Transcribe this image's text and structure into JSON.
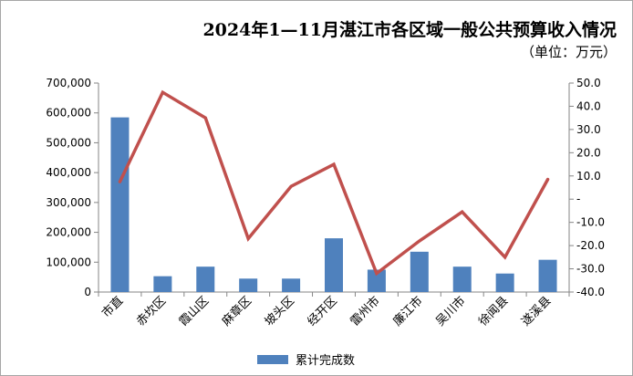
{
  "chart_data": {
    "type": "bar",
    "title": "2024年1—11月湛江市各区域一般公共预算收入情况",
    "subtitle": "（单位：万元）",
    "categories": [
      "市直",
      "赤坎区",
      "霞山区",
      "麻章区",
      "坡头区",
      "经开区",
      "雷州市",
      "廉江市",
      "吴川市",
      "徐闻县",
      "遂溪县"
    ],
    "series": [
      {
        "name": "累计完成数",
        "type": "bar",
        "axis": "left",
        "color": "#4f81bd",
        "values": [
          585000,
          53000,
          85000,
          45000,
          45000,
          180000,
          75000,
          135000,
          85000,
          62000,
          108000
        ]
      },
      {
        "type": "line",
        "axis": "right",
        "color": "#c0504d",
        "values": [
          7.5,
          46,
          35,
          -17,
          5.5,
          15,
          -32,
          -18,
          -5.5,
          -25,
          8.5
        ]
      }
    ],
    "yLeft": {
      "min": 0,
      "max": 700000,
      "ticks": [
        "0",
        "100,000",
        "200,000",
        "300,000",
        "400,000",
        "500,000",
        "600,000",
        "700,000"
      ]
    },
    "yRight": {
      "min": -40,
      "max": 50,
      "ticks": [
        "-40.0",
        "-30.0",
        "-20.0",
        "-10.0",
        "-",
        "10.0",
        "20.0",
        "30.0",
        "40.0",
        "50.0"
      ]
    },
    "legend": "bottom"
  }
}
